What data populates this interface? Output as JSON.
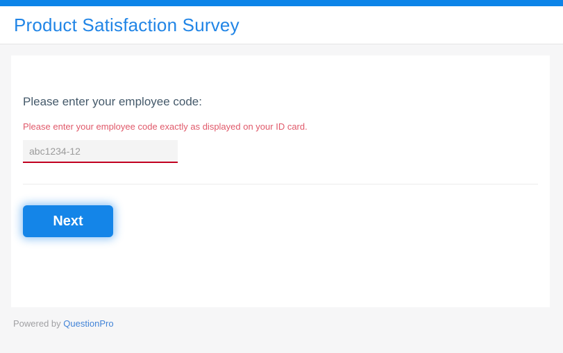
{
  "header": {
    "title": "Product Satisfaction Survey"
  },
  "question": {
    "label": "Please enter your employee code:",
    "helper": "Please enter your employee code exactly as displayed on your ID card.",
    "input_placeholder": "abc1234-12",
    "input_value": ""
  },
  "buttons": {
    "next": "Next"
  },
  "footer": {
    "powered_by": "Powered by",
    "brand": "QuestionPro"
  },
  "colors": {
    "accent_blue": "#0d84e8",
    "title_blue": "#2185e6",
    "button_blue": "#1485e8",
    "helper_red": "#e0596a",
    "input_underline_red": "#c1001f",
    "link_blue": "#4183d7",
    "page_background": "#f6f6f7"
  }
}
